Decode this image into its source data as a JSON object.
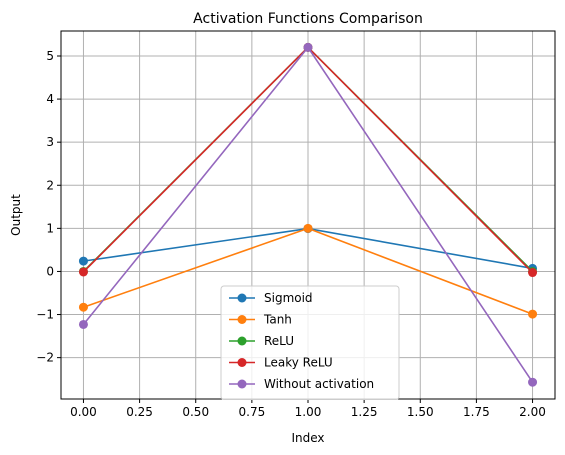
{
  "chart_data": {
    "type": "line",
    "title": "Activation Functions Comparison",
    "xlabel": "Index",
    "ylabel": "Output",
    "x": [
      0,
      1,
      2
    ],
    "xlim": [
      -0.1,
      2.1
    ],
    "ylim": [
      -2.96,
      5.58
    ],
    "xticks": [
      0.0,
      0.25,
      0.5,
      0.75,
      1.0,
      1.25,
      1.5,
      1.75,
      2.0
    ],
    "xtick_labels": [
      "0.00",
      "0.25",
      "0.50",
      "0.75",
      "1.00",
      "1.25",
      "1.50",
      "1.75",
      "2.00"
    ],
    "yticks": [
      -2,
      -1,
      0,
      1,
      2,
      3,
      4,
      5
    ],
    "ytick_labels": [
      "−2",
      "−1",
      "0",
      "1",
      "2",
      "3",
      "4",
      "5"
    ],
    "grid": true,
    "legend_position": "bottom-center",
    "series": [
      {
        "name": "Sigmoid",
        "color": "#1f77b4",
        "values": [
          0.24,
          0.995,
          0.07
        ]
      },
      {
        "name": "Tanh",
        "color": "#ff7f0e",
        "values": [
          -0.83,
          1.0,
          -0.99
        ]
      },
      {
        "name": "ReLU",
        "color": "#2ca02c",
        "values": [
          0.0,
          5.2,
          0.0
        ]
      },
      {
        "name": "Leaky ReLU",
        "color": "#d62728",
        "values": [
          -0.0115,
          5.2,
          -0.0257
        ]
      },
      {
        "name": "Without activation",
        "color": "#9467bd",
        "values": [
          -1.23,
          5.2,
          -2.57
        ]
      }
    ]
  }
}
